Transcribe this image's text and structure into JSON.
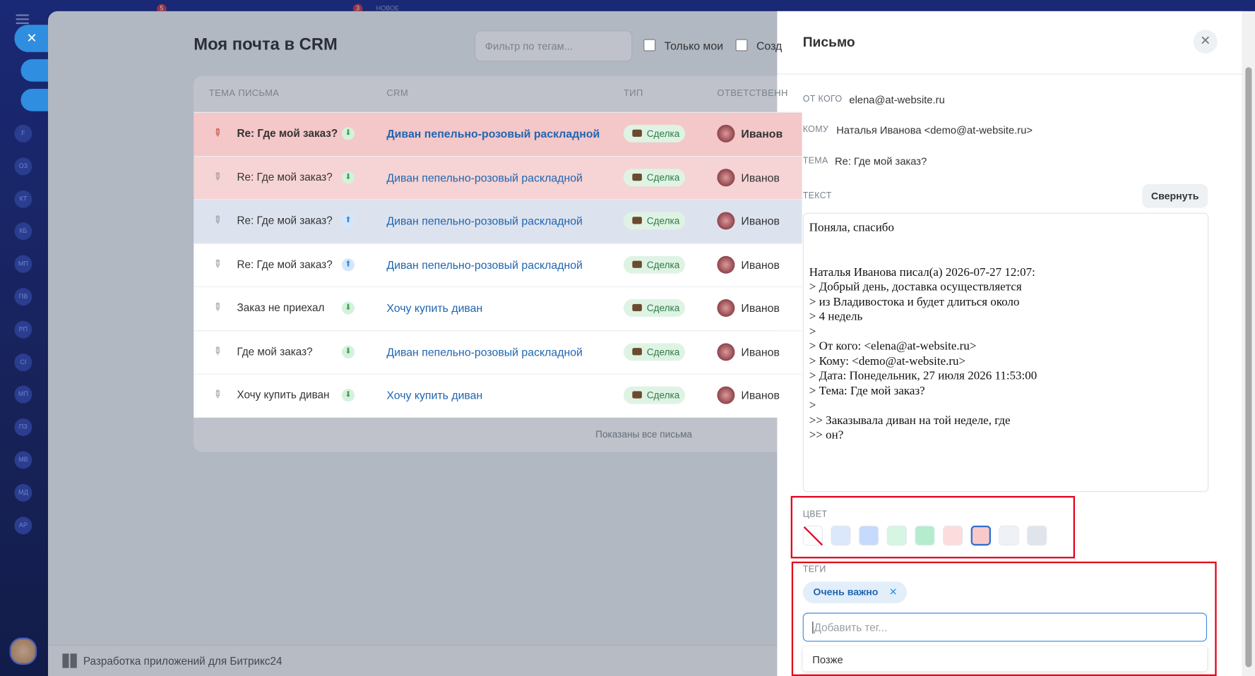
{
  "top_bar": {
    "badges": [
      "5",
      "3"
    ],
    "new_label": "НОВОЕ"
  },
  "sidebar": {
    "items": [
      "F",
      "ОЗ",
      "КТ",
      "КБ",
      "МП",
      "ПВ",
      "РП",
      "СI",
      "МП",
      "ПЗ",
      "МВ",
      "МД",
      "АР"
    ]
  },
  "header": {
    "title": "Моя почта в CRM",
    "filter_placeholder": "Фильтр по тегам...",
    "checkboxes": [
      "Только мои",
      "Созд"
    ]
  },
  "table": {
    "columns": [
      "ТЕМА ПИСЬМА",
      "CRM",
      "ТИП",
      "ОТВЕТСТВЕНН"
    ],
    "rows": [
      {
        "subject": "Re: Где мой заказ?",
        "crm": "Диван пепельно-розовый раскладной",
        "type": "Сделка",
        "responsible": "Иванов",
        "color": "#f4c7c9",
        "direction": "in",
        "bold": true
      },
      {
        "subject": "Re: Где мой заказ?",
        "crm": "Диван пепельно-розовый раскладной",
        "type": "Сделка",
        "responsible": "Иванов",
        "color": "#f6d3d4",
        "direction": "in",
        "bold": false
      },
      {
        "subject": "Re: Где мой заказ?",
        "crm": "Диван пепельно-розовый раскладной",
        "type": "Сделка",
        "responsible": "Иванов",
        "color": "#dde3ee",
        "direction": "out",
        "bold": false
      },
      {
        "subject": "Re: Где мой заказ?",
        "crm": "Диван пепельно-розовый раскладной",
        "type": "Сделка",
        "responsible": "Иванов",
        "color": "#ffffff",
        "direction": "out",
        "bold": false
      },
      {
        "subject": "Заказ не приехал",
        "crm": "Хочу купить диван",
        "type": "Сделка",
        "responsible": "Иванов",
        "color": "#ffffff",
        "direction": "in",
        "bold": false
      },
      {
        "subject": "Где мой заказ?",
        "crm": "Диван пепельно-розовый раскладной",
        "type": "Сделка",
        "responsible": "Иванов",
        "color": "#ffffff",
        "direction": "in",
        "bold": false
      },
      {
        "subject": "Хочу купить диван",
        "crm": "Хочу купить диван",
        "type": "Сделка",
        "responsible": "Иванов",
        "color": "#ffffff",
        "direction": "in",
        "bold": false
      }
    ],
    "footer": "Показаны все письма"
  },
  "bottom_bar": {
    "label": "Разработка приложений для Битрикс24"
  },
  "panel": {
    "title": "Письмо",
    "fields": [
      {
        "label": "ОТ КОГО",
        "value": "elena@at-website.ru"
      },
      {
        "label": "КОМУ",
        "value": "Наталья Иванова <demo@at-website.ru>"
      },
      {
        "label": "ТЕМА",
        "value": "Re: Где мой заказ?"
      }
    ],
    "text_label": "ТЕКСТ",
    "collapse_button": "Свернуть",
    "body": "Поняла, спасибо\n\n\nНаталья Иванова писал(а) 2026-07-27 12:07:\n> Добрый день, доставка осуществляется\n> из Владивостока и будет длиться около\n> 4 недель\n>\n> От кого: <elena@at-website.ru>\n> Кому: <demo@at-website.ru>\n> Дата: Понедельник, 27 июля 2026 11:53:00\n> Тема: Где мой заказ?\n>\n>> Заказывала диван на той неделе, где\n>> он?",
    "color_label": "ЦВЕТ",
    "colors": [
      "#ffffff",
      "#dbe7fb",
      "#c5dafc",
      "#d6f5e3",
      "#b5ecce",
      "#fcdcdc",
      "#f9c9c9",
      "#eef1f5",
      "#e0e5ec"
    ],
    "selected_color": 6,
    "tags_label": "ТЕГИ",
    "tags": [
      "Очень важно"
    ],
    "tag_input_placeholder": "Добавить тег...",
    "suggestions": [
      "Позже"
    ]
  }
}
